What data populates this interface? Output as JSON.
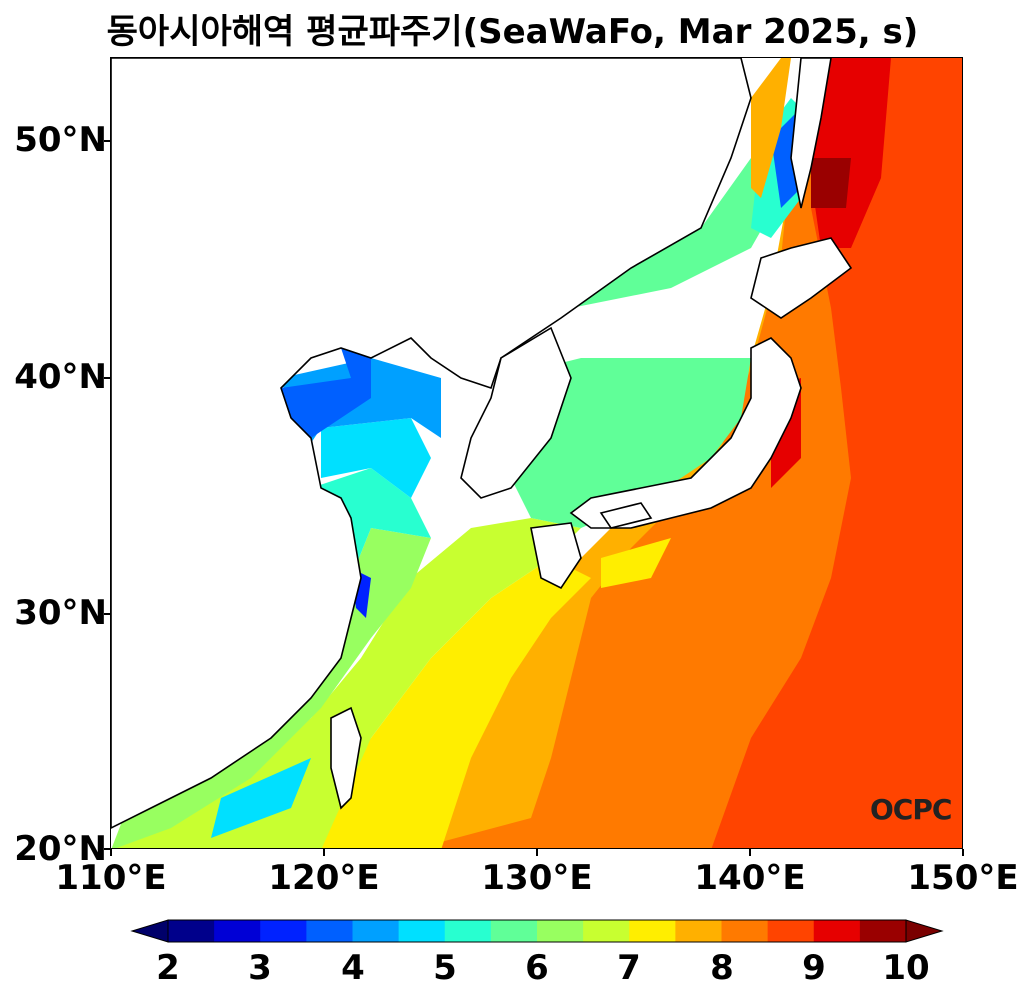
{
  "title": "동아시아해역 평균파주기(SeaWaFo, Mar 2025, s)",
  "lat_ticks": [
    "50°N",
    "40°N",
    "30°N",
    "20°N"
  ],
  "lon_ticks": [
    "110°E",
    "120°E",
    "130°E",
    "140°E",
    "150°E"
  ],
  "colorbar": {
    "labels": [
      "2",
      "3",
      "4",
      "5",
      "6",
      "7",
      "8",
      "9",
      "10"
    ],
    "colors": [
      "#00008b",
      "#0000d6",
      "#0022ff",
      "#0060ff",
      "#00a0ff",
      "#00e0ff",
      "#28ffd0",
      "#60ff98",
      "#98ff60",
      "#c8ff30",
      "#ffee00",
      "#ffb000",
      "#ff7a00",
      "#ff4400",
      "#e60000",
      "#9a0000"
    ],
    "under_color": "#00006a",
    "over_color": "#7a0000"
  },
  "logo": "OCPC"
}
